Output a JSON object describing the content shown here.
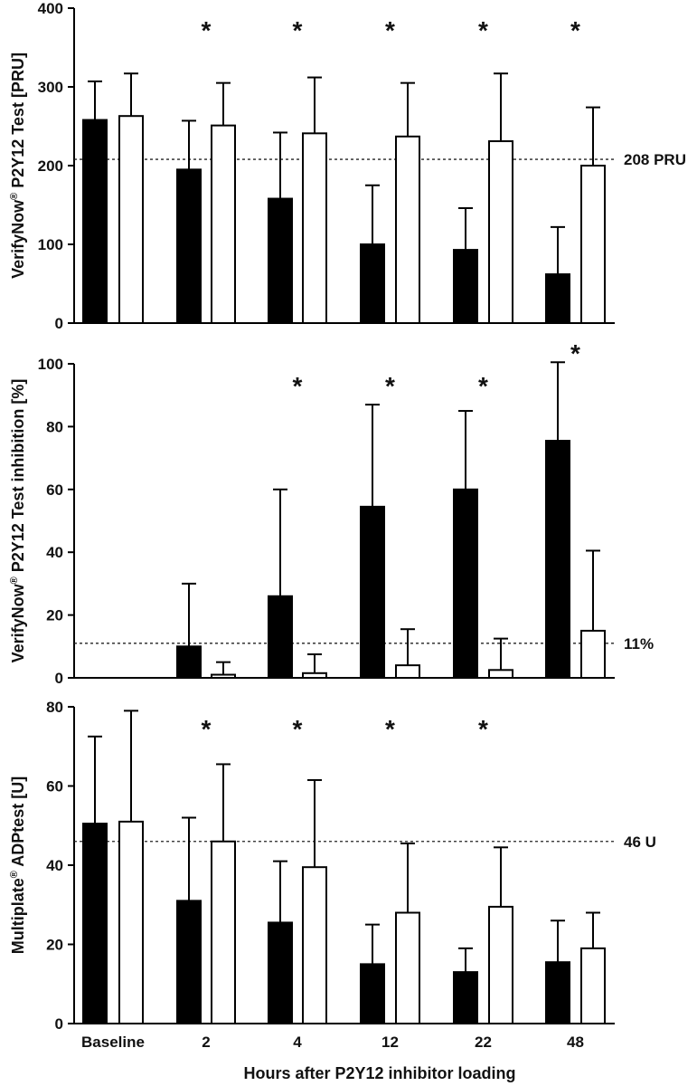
{
  "figure": {
    "xlabel": "Hours after P2Y12 inhibitor loading",
    "categories": [
      "Baseline",
      "2",
      "4",
      "12",
      "22",
      "48"
    ]
  },
  "chart_data": [
    {
      "type": "bar",
      "ylabel_main": "VerifyNow",
      "ylabel_reg": "®",
      "ylabel_tail": " P2Y12 Test [PRU]",
      "ylim": [
        0,
        400
      ],
      "yticks": [
        0,
        100,
        200,
        300,
        400
      ],
      "categories": [
        "Baseline",
        "2",
        "4",
        "12",
        "22",
        "48"
      ],
      "series": [
        {
          "name": "filled",
          "fill": "#000000",
          "values": [
            258,
            195,
            158,
            100,
            93,
            62
          ],
          "errors": [
            307,
            257,
            242,
            175,
            146,
            122
          ]
        },
        {
          "name": "open",
          "fill": "#ffffff",
          "values": [
            263,
            251,
            241,
            237,
            231,
            200
          ],
          "errors": [
            317,
            305,
            312,
            305,
            317,
            274
          ]
        }
      ],
      "reference": {
        "value": 208,
        "label": "208 PRU"
      },
      "significance": {
        "marker": "*",
        "categories": [
          "2",
          "4",
          "12",
          "22",
          "48"
        ]
      }
    },
    {
      "type": "bar",
      "ylabel_main": "VerifyNow",
      "ylabel_reg": "®",
      "ylabel_tail": " P2Y12 Test inhibition [%]",
      "ylim": [
        0,
        100
      ],
      "yticks": [
        0,
        20,
        40,
        60,
        80,
        100
      ],
      "categories": [
        "Baseline",
        "2",
        "4",
        "12",
        "22",
        "48"
      ],
      "series": [
        {
          "name": "filled",
          "fill": "#000000",
          "values": [
            null,
            10,
            26,
            54.5,
            60,
            75.5
          ],
          "errors": [
            null,
            30,
            60,
            87,
            85,
            100.5
          ]
        },
        {
          "name": "open",
          "fill": "#ffffff",
          "values": [
            null,
            1,
            1.5,
            4,
            2.5,
            15
          ],
          "errors": [
            null,
            5,
            7.5,
            15.5,
            12.5,
            40.5
          ]
        }
      ],
      "reference": {
        "value": 11,
        "label": "11%"
      },
      "significance": {
        "marker": "*",
        "categories": [
          "4",
          "12",
          "22",
          "48"
        ]
      }
    },
    {
      "type": "bar",
      "ylabel_main": "Multiplate",
      "ylabel_reg": "®",
      "ylabel_tail": " ADPtest [U]",
      "ylim": [
        0,
        80
      ],
      "yticks": [
        0,
        20,
        40,
        60,
        80
      ],
      "categories": [
        "Baseline",
        "2",
        "4",
        "12",
        "22",
        "48"
      ],
      "series": [
        {
          "name": "filled",
          "fill": "#000000",
          "values": [
            50.5,
            31,
            25.5,
            15,
            13,
            15.5
          ],
          "errors": [
            72.5,
            52,
            41,
            25,
            19,
            26
          ]
        },
        {
          "name": "open",
          "fill": "#ffffff",
          "values": [
            51,
            46,
            39.5,
            28,
            29.5,
            19
          ],
          "errors": [
            79,
            65.5,
            61.5,
            45.5,
            44.5,
            28
          ]
        }
      ],
      "reference": {
        "value": 46,
        "label": "46 U"
      },
      "significance": {
        "marker": "*",
        "categories": [
          "2",
          "4",
          "12",
          "22"
        ]
      }
    }
  ]
}
